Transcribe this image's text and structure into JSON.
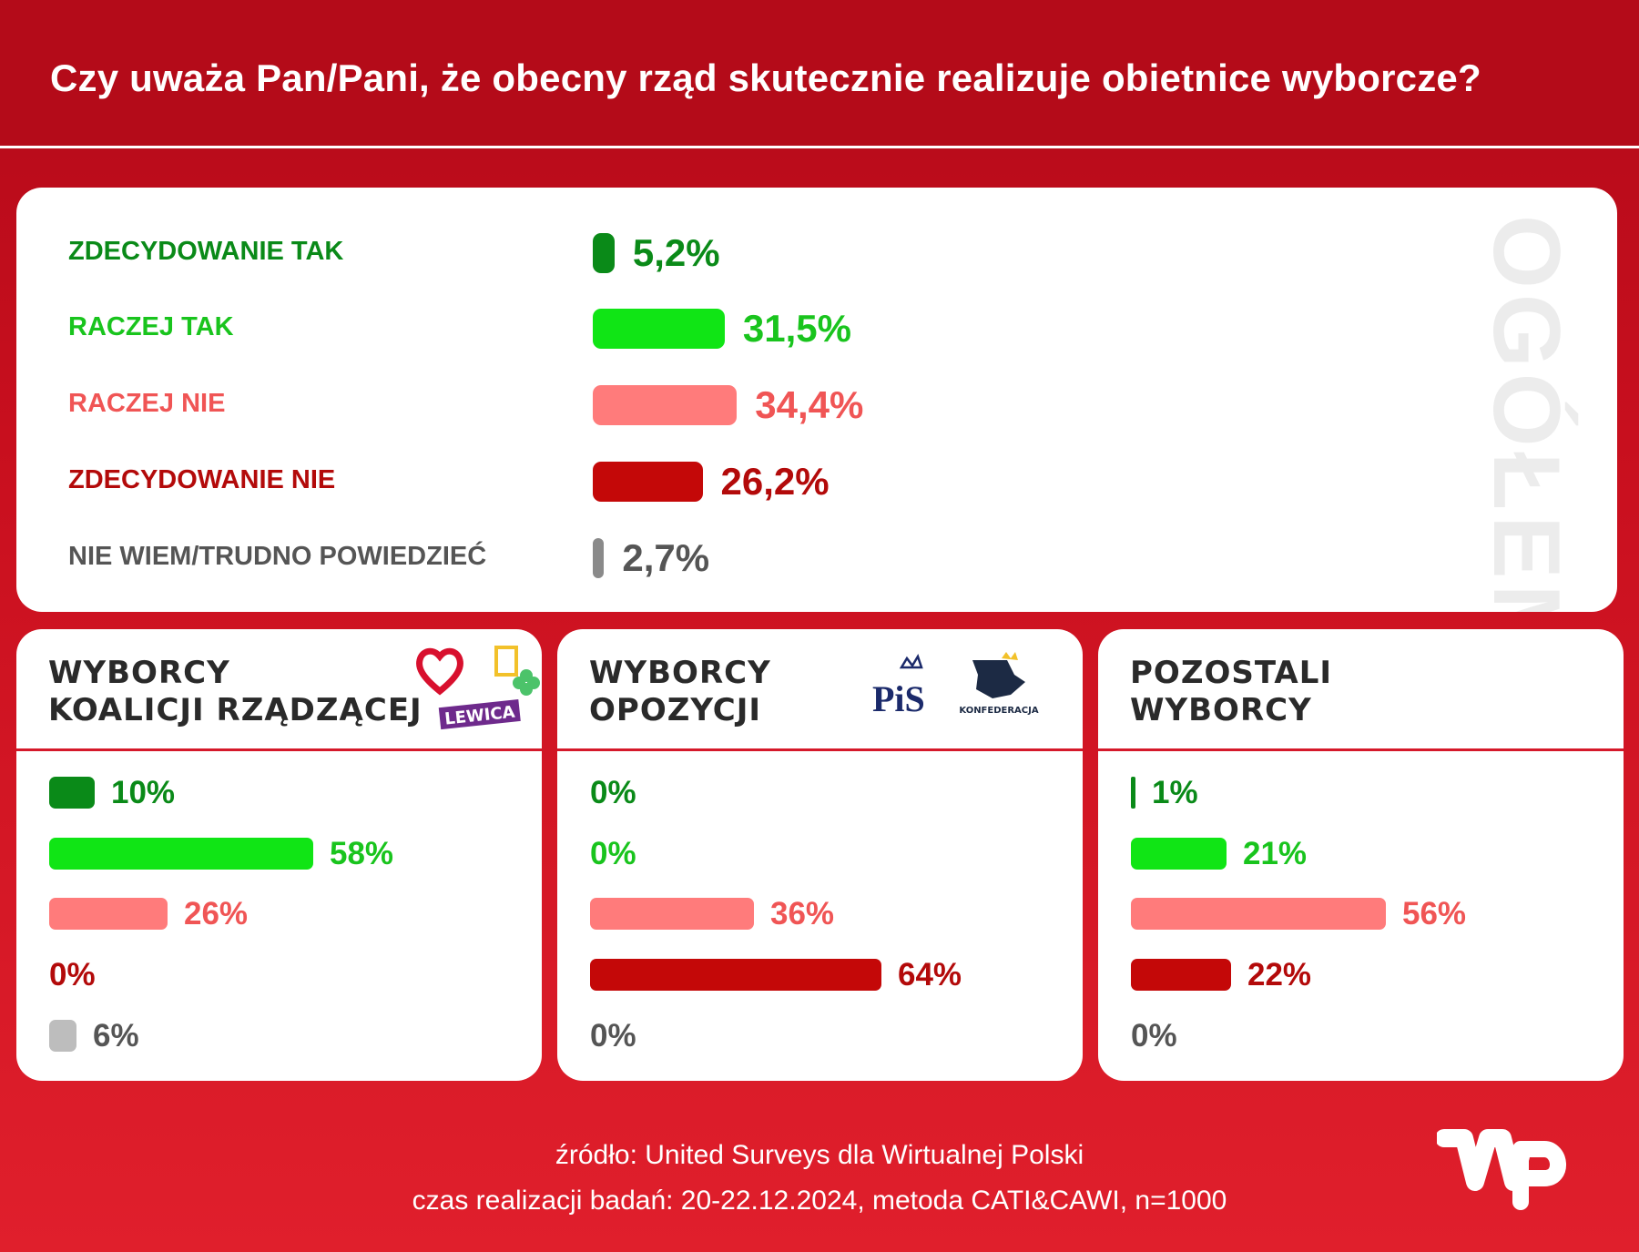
{
  "header": {
    "title": "Czy uważa Pan/Pani, że obecny rząd skutecznie realizuje obietnice wyborcze?"
  },
  "colors": {
    "zdecydowanie_tak": "#0a8a18",
    "raczej_tak": "#10e515",
    "raczej_nie": "#ff7b7b",
    "zdecydowanie_nie": "#c40808",
    "nie_wiem": "#8a8a8a"
  },
  "chart_data": [
    {
      "type": "bar",
      "title": "OGÓŁEM",
      "categories": [
        "ZDECYDOWANIE TAK",
        "RACZEJ TAK",
        "RACZEJ NIE",
        "ZDECYDOWANIE NIE",
        "NIE WIEM/TRUDNO POWIEDZIEĆ"
      ],
      "values": [
        5.2,
        31.5,
        34.4,
        26.2,
        2.7
      ],
      "labels": [
        "5,2%",
        "31,5%",
        "34,4%",
        "26,2%",
        "2,7%"
      ]
    },
    {
      "type": "bar",
      "title": [
        "WYBORCY",
        "KOALICJI RZĄDZĄCEJ"
      ],
      "logos": [
        "heart-logo",
        "2050-logo",
        "clover-logo",
        "LEWICA"
      ],
      "categories": [
        "ZDECYDOWANIE TAK",
        "RACZEJ TAK",
        "RACZEJ NIE",
        "ZDECYDOWANIE NIE",
        "NIE WIEM/TRUDNO POWIEDZIEĆ"
      ],
      "values": [
        10,
        58,
        26,
        0,
        6
      ],
      "labels": [
        "10%",
        "58%",
        "26%",
        "0%",
        "6%"
      ]
    },
    {
      "type": "bar",
      "title": [
        "WYBORCY",
        "OPOZYCJI"
      ],
      "logos": [
        "PiS",
        "KONFEDERACJA"
      ],
      "categories": [
        "ZDECYDOWANIE TAK",
        "RACZEJ TAK",
        "RACZEJ NIE",
        "ZDECYDOWANIE NIE",
        "NIE WIEM/TRUDNO POWIEDZIEĆ"
      ],
      "values": [
        0,
        0,
        36,
        64,
        0
      ],
      "labels": [
        "0%",
        "0%",
        "36%",
        "64%",
        "0%"
      ]
    },
    {
      "type": "bar",
      "title": [
        "POZOSTALI",
        "WYBORCY"
      ],
      "categories": [
        "ZDECYDOWANIE TAK",
        "RACZEJ TAK",
        "RACZEJ NIE",
        "ZDECYDOWANIE NIE",
        "NIE WIEM/TRUDNO POWIEDZIEĆ"
      ],
      "values": [
        1,
        21,
        56,
        22,
        0
      ],
      "labels": [
        "1%",
        "21%",
        "56%",
        "22%",
        "0%"
      ]
    }
  ],
  "footer": {
    "source": "źródło: United Surveys dla Wirtualnej Polski",
    "details": "czas realizacji badań: 20-22.12.2024, metoda CATI&CAWI, n=1000"
  }
}
